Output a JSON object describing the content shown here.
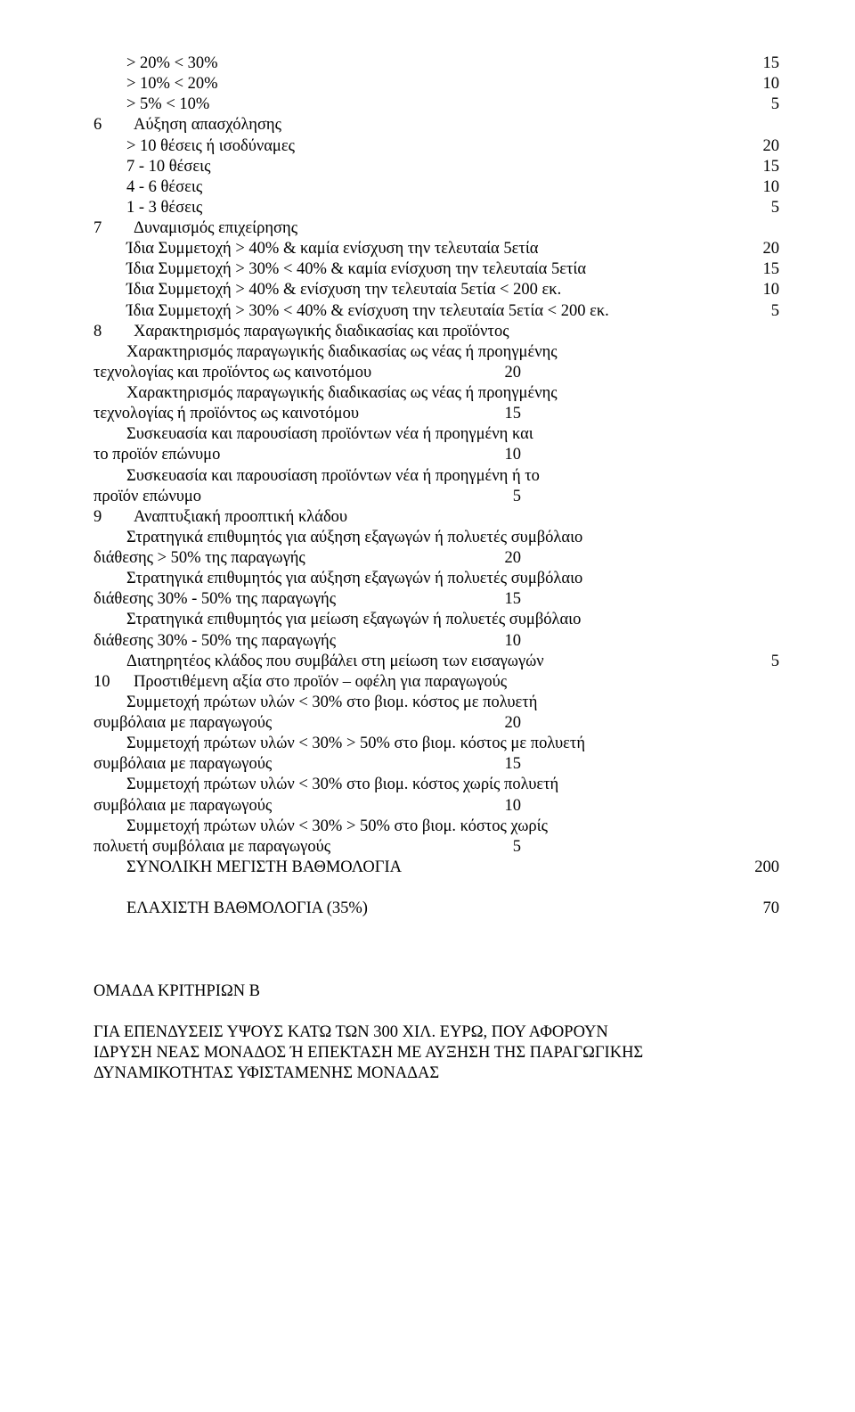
{
  "lines": [
    {
      "type": "row",
      "left": "        > 20% < 30%",
      "right": "15"
    },
    {
      "type": "row",
      "left": "        > 10% < 20%",
      "right": "10"
    },
    {
      "type": "row",
      "left": "        > 5% < 10%",
      "right": "5"
    },
    {
      "type": "sec",
      "num": "6",
      "txt": "Αύξηση απασχόλησης"
    },
    {
      "type": "row",
      "left": "        > 10 θέσεις ή ισοδύναμες",
      "right": "20"
    },
    {
      "type": "row",
      "left": "        7 - 10 θέσεις",
      "right": "15"
    },
    {
      "type": "row",
      "left": "        4 - 6 θέσεις",
      "right": "10"
    },
    {
      "type": "row",
      "left": "        1 - 3 θέσεις",
      "right": "5"
    },
    {
      "type": "sec",
      "num": "7",
      "txt": "Δυναμισμός επιχείρησης"
    },
    {
      "type": "row",
      "left": "        Ίδια Συμμετοχή > 40% & καμία ενίσχυση την τελευταία 5ετία",
      "right": "20"
    },
    {
      "type": "row",
      "left": "        Ίδια Συμμετοχή > 30% < 40% & καμία ενίσχυση την τελευταία 5ετία",
      "right": "15"
    },
    {
      "type": "row",
      "left": "        Ίδια Συμμετοχή > 40% & ενίσχυση την τελευταία 5ετία < 200 εκ.",
      "right": "10"
    },
    {
      "type": "row",
      "left": "        Ίδια Συμμετοχή > 30% < 40% & ενίσχυση την τελευταία 5ετία < 200 εκ.",
      "right": "5"
    },
    {
      "type": "sec",
      "num": "8",
      "txt": "Χαρακτηρισμός παραγωγικής διαδικασίας και προϊόντος"
    },
    {
      "type": "plain",
      "left": "        Χαρακτηρισμός παραγωγικής διαδικασίας ως νέας ή προηγμένης"
    },
    {
      "type": "row",
      "left": "τεχνολογίας και προϊόντος ως καινοτόμου",
      "right": "20",
      "rightpad": "290"
    },
    {
      "type": "plain",
      "left": "        Χαρακτηρισμός παραγωγικής διαδικασίας ως νέας ή προηγμένης"
    },
    {
      "type": "row",
      "left": "τεχνολογίας ή προϊόντος ως καινοτόμου",
      "right": "15",
      "rightpad": "290"
    },
    {
      "type": "plain",
      "left": "        Συσκευασία και παρουσίαση προϊόντων νέα ή προηγμένη και"
    },
    {
      "type": "row",
      "left": "το προϊόν επώνυμο",
      "right": "10",
      "rightpad": "290"
    },
    {
      "type": "plain",
      "left": "        Συσκευασία και παρουσίαση προϊόντων νέα ή προηγμένη ή το"
    },
    {
      "type": "row",
      "left": "προϊόν επώνυμο",
      "right": "5",
      "rightpad": "290"
    },
    {
      "type": "sec",
      "num": "9",
      "txt": "Αναπτυξιακή προοπτική κλάδου"
    },
    {
      "type": "plain",
      "left": "        Στρατηγικά επιθυμητός για αύξηση εξαγωγών ή πολυετές συμβόλαιο"
    },
    {
      "type": "row",
      "left": "διάθεσης > 50% της παραγωγής",
      "right": "20",
      "rightpad": "290"
    },
    {
      "type": "plain",
      "left": "        Στρατηγικά επιθυμητός για αύξηση εξαγωγών ή πολυετές συμβόλαιο"
    },
    {
      "type": "row",
      "left": "διάθεσης 30% - 50% της παραγωγής",
      "right": "15",
      "rightpad": "290"
    },
    {
      "type": "plain",
      "left": "        Στρατηγικά επιθυμητός για μείωση εξαγωγών ή πολυετές συμβόλαιο"
    },
    {
      "type": "row",
      "left": "διάθεσης 30% - 50% της παραγωγής",
      "right": "10",
      "rightpad": "290"
    },
    {
      "type": "row",
      "left": "        Διατηρητέος κλάδος που συμβάλει στη μείωση των εισαγωγών",
      "right": "5"
    },
    {
      "type": "sec",
      "num": "10",
      "txt": "Προστιθέμενη αξία στο προϊόν – οφέλη για παραγωγούς"
    },
    {
      "type": "plain",
      "left": "        Συμμετοχή πρώτων υλών < 30% στο βιομ. κόστος με πολυετή"
    },
    {
      "type": "row",
      "left": "συμβόλαια με παραγωγούς",
      "right": "20",
      "rightpad": "290"
    },
    {
      "type": "plain",
      "left": "        Συμμετοχή πρώτων υλών < 30% > 50% στο βιομ. κόστος με πολυετή"
    },
    {
      "type": "row",
      "left": "συμβόλαια με παραγωγούς",
      "right": "15",
      "rightpad": "290"
    },
    {
      "type": "plain",
      "left": "        Συμμετοχή πρώτων υλών < 30% στο βιομ. κόστος χωρίς πολυετή"
    },
    {
      "type": "row",
      "left": "συμβόλαια με παραγωγούς",
      "right": "10",
      "rightpad": "290"
    },
    {
      "type": "plain",
      "left": "        Συμμετοχή πρώτων υλών < 30% > 50% στο βιομ. κόστος χωρίς"
    },
    {
      "type": "row",
      "left": "πολυετή συμβόλαια με παραγωγούς",
      "right": "5",
      "rightpad": "290"
    },
    {
      "type": "row",
      "left": "        ΣΥΝΟΛΙΚΗ ΜΕΓΙΣΤΗ ΒΑΘΜΟΛΟΓΙΑ",
      "right": "200"
    },
    {
      "type": "gap"
    },
    {
      "type": "row",
      "left": "        ΕΛΑΧΙΣΤΗ ΒΑΘΜΟΛΟΓΙΑ (35%)",
      "right": "70"
    },
    {
      "type": "gap2"
    },
    {
      "type": "gap"
    },
    {
      "type": "plain",
      "left": "ΟΜΑΔΑ ΚΡΙΤΗΡΙΩΝ Β"
    },
    {
      "type": "gap"
    },
    {
      "type": "plain",
      "left": "ΓΙΑ ΕΠΕΝΔΥΣΕΙΣ ΥΨΟΥΣ ΚΑΤΩ ΤΩΝ 300 ΧΙΛ. ΕΥΡΩ, ΠΟΥ ΑΦΟΡΟΥΝ"
    },
    {
      "type": "plain",
      "left": "ΙΔΡΥΣΗ ΝΕΑΣ ΜΟΝΑΔΟΣ Ή ΕΠΕΚΤΑΣΗ ΜΕ ΑΥΞΗΣΗ ΤΗΣ ΠΑΡΑΓΩΓΙΚΗΣ"
    },
    {
      "type": "plain",
      "left": "ΔΥΝΑΜΙΚΟΤΗΤΑΣ ΥΦΙΣΤΑΜΕΝΗΣ ΜΟΝΑΔΑΣ"
    }
  ]
}
